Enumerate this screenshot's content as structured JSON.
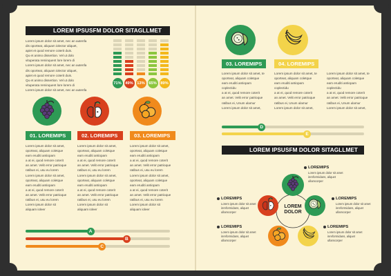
{
  "left": {
    "header": "LOREM IPSUSFM DOLOR SITAGLLMET",
    "intro_lines": [
      "Lorem ipsum dolor sit amet, nec an autenfa",
      "dis oporteat, aliquam iolector aliquet,",
      "apiet et quod remore coterit duis.",
      "Qu et animo dissertion. Vel ut dolo",
      "vituperata reminquent lore lorem di",
      "Lorem ipsum dolor sit amet, nec an autenfa",
      "dis oporteat, aliquam iolector aliquet,",
      "apiet et quod remore coterit duis.",
      "Qu et animo dissertion. Vel ut dolo",
      "vituperata reminquent lore lorem di",
      "Lorem ipsum dolor sit amet, nec an autenfa"
    ],
    "percentages": [
      {
        "label": "71%",
        "value": 71,
        "color": "#2e9a55"
      },
      {
        "label": "49%",
        "value": 49,
        "color": "#d8401e"
      },
      {
        "label": "13%",
        "value": 13,
        "color": "#f08a1c"
      },
      {
        "label": "65%",
        "value": 65,
        "color": "#8cc63f"
      },
      {
        "label": "89%",
        "value": 89,
        "color": "#f3b81b"
      }
    ],
    "features": [
      {
        "label": "01. LOREMIPS",
        "icon": "grapes-icon",
        "circle": "#2e9a55",
        "tag": "#2e9a55"
      },
      {
        "label": "02. LOREMIPS",
        "icon": "apple-icon",
        "circle": "#d8401e",
        "tag": "#d8401e"
      },
      {
        "label": "03. LOREMIPS",
        "icon": "oranges-icon",
        "circle": "#f08a1c",
        "tag": "#f08a1c"
      }
    ],
    "body_lines": [
      "Lorem ipsum dolor sit amet,",
      "oporteat, aliquam coletque",
      "eam eruditi antiopam",
      "a at ei, quod remore coterit",
      "an amet. Velit error patrioque",
      "ratibus ei, usu eu lorem",
      "Lorem ipsum dolor sit amet,",
      "oporteat, aliquam coletque",
      "eam eruditi antiopam",
      "a at ei, quod remore coterit",
      "an amet. Velit error patrioque",
      "ratibus ei, usu eu lorem",
      "Lorem ipsum dolor sit",
      "aliquam ioleer"
    ],
    "sliders": [
      {
        "letter": "A",
        "value": 0.45,
        "color": "#2e9a55"
      },
      {
        "letter": "B",
        "value": 0.7,
        "color": "#d8401e"
      },
      {
        "letter": "C",
        "value": 0.53,
        "color": "#f08a1c"
      }
    ]
  },
  "right": {
    "top_features": [
      {
        "label": "03. LOREMIPS",
        "icon": "melon-icon",
        "circle": "#2e9a55",
        "tag": "#2e9a55"
      },
      {
        "label": "04. LOREMIPS",
        "icon": "bananas-icon",
        "circle": "#f3d34a",
        "tag": "#f3d34a"
      }
    ],
    "body_lines": [
      "Lorem ipsum dolor sit amet, te",
      "oporteat, aliquam coletque",
      "eam eruditi antiopam coplectidu",
      "a at ei, quod remore coterit",
      "an amet. Velit error patrioque",
      "ratibus ei, Unum ulamur",
      "Lorem ipsum dolor sit amet,",
      "oporteat, aliquam coletque"
    ],
    "sliders": [
      {
        "letter": "D",
        "value": 0.28,
        "color": "#2e9a55"
      },
      {
        "letter": "E",
        "value": 0.6,
        "color": "#f3d34a"
      }
    ],
    "header": "LOREM IPSUSFM DOLOR SITAGLLMET",
    "center": {
      "line1": "LOREM",
      "line2": "DOLOR"
    },
    "items": [
      {
        "label": "LOREMIPS",
        "icon": "grapes-icon",
        "circle": "#2e9a55"
      },
      {
        "label": "LOREMIPS",
        "icon": "melon-icon",
        "circle": "#2e9a55"
      },
      {
        "label": "LOREMIPS",
        "icon": "apple-icon",
        "circle": "#d8401e"
      },
      {
        "label": "LOREMIPS",
        "icon": "oranges-icon",
        "circle": "#f08a1c"
      },
      {
        "label": "LOREMIPS",
        "icon": "bananas-icon",
        "circle": "#f3d34a"
      }
    ],
    "item_text": [
      "Lorem ipsum dolor sit amet",
      "inreformidans, aliquet",
      "ullamcorper"
    ]
  }
}
